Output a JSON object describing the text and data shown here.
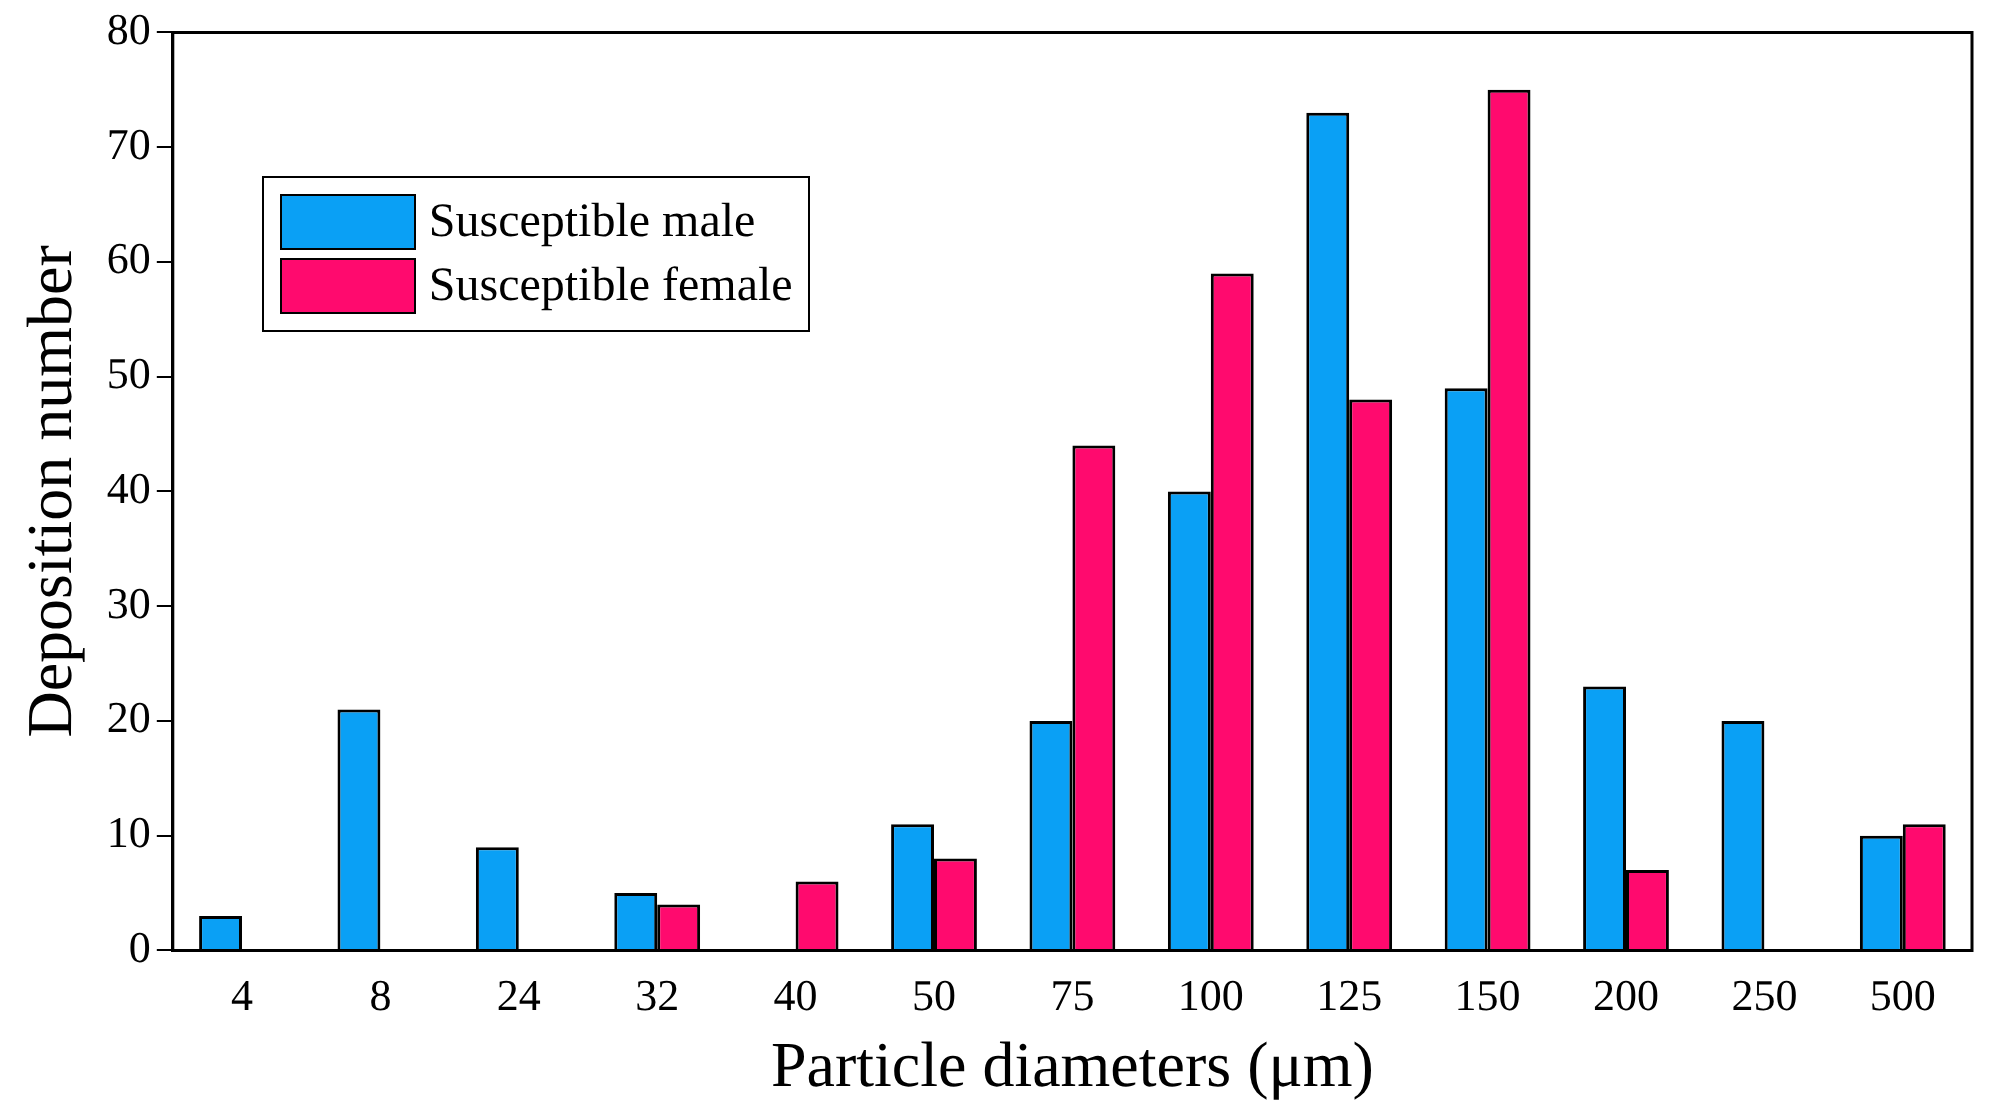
{
  "chart_data": {
    "type": "bar",
    "xlabel": "Particle diameters (μm)",
    "ylabel": "Deposition number",
    "categories": [
      "4",
      "8",
      "24",
      "32",
      "40",
      "50",
      "75",
      "100",
      "125",
      "150",
      "200",
      "250",
      "500"
    ],
    "series": [
      {
        "name": "Susceptible male",
        "color": "#0aa0f5",
        "values": [
          3,
          21,
          9,
          5,
          0,
          11,
          20,
          40,
          73,
          49,
          23,
          20,
          10
        ]
      },
      {
        "name": "Susceptible female",
        "color": "#ff0a6e",
        "values": [
          0,
          0,
          0,
          4,
          6,
          8,
          44,
          59,
          48,
          75,
          7,
          0,
          11
        ]
      }
    ],
    "ylim": [
      0,
      80
    ],
    "yticks": [
      0,
      10,
      20,
      30,
      40,
      50,
      60,
      70,
      80
    ],
    "grid": false,
    "legend": "top left"
  }
}
